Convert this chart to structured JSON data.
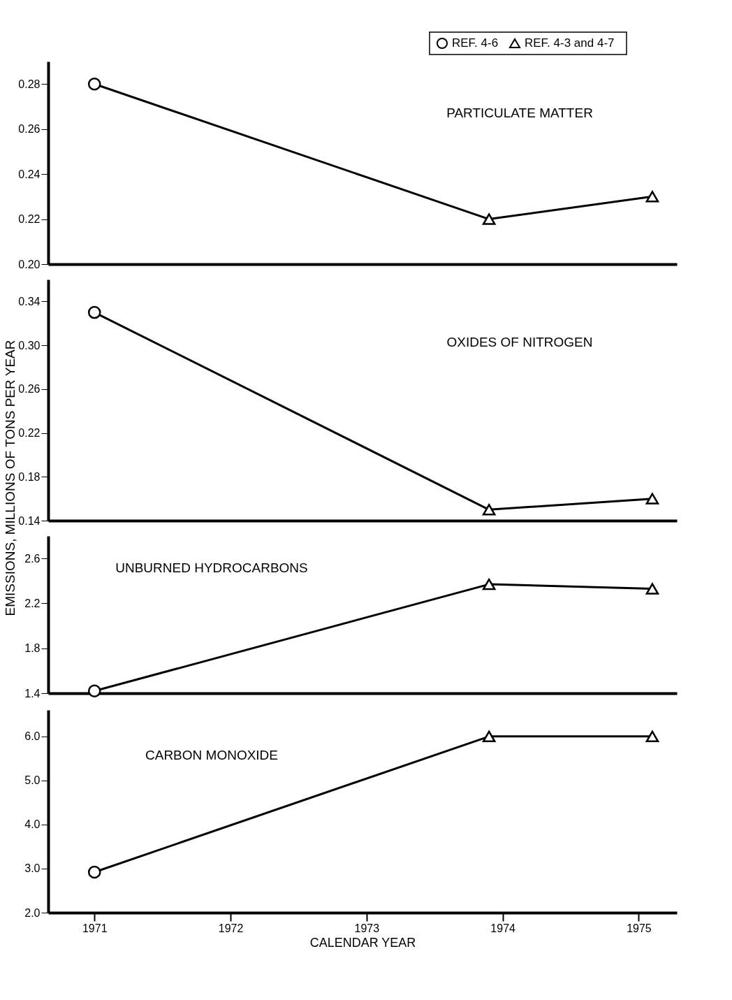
{
  "chart_data": [
    {
      "type": "line",
      "xlim": [
        1970.66,
        1975.28
      ],
      "xticks": [
        1971,
        1972,
        1973,
        1974,
        1975
      ],
      "ylim": [
        0.2,
        0.29
      ],
      "yticks": [
        {
          "value": 0.2,
          "label": "0.20"
        },
        0.22,
        0.24,
        0.26,
        0.28
      ],
      "tick_labels": "y",
      "legend": "top right",
      "annotations": [
        "PARTICULATE MATTER"
      ],
      "series": [
        {
          "marker": "none",
          "color": "#000000",
          "x": [
            1971,
            1973.9,
            1975.1
          ],
          "values": [
            0.28,
            0.22,
            0.23
          ]
        },
        {
          "type": "scatter",
          "name": "REF. 4-6",
          "marker": "circle",
          "color": "#000000",
          "x": [
            1971
          ],
          "values": [
            0.28
          ]
        },
        {
          "type": "scatter",
          "name": "REF. 4-3 and 4-7",
          "marker": "triangle",
          "color": "#000000",
          "x": [
            1973.9,
            1975.1
          ],
          "values": [
            0.22,
            0.23
          ]
        }
      ]
    },
    {
      "type": "line",
      "xlim": [
        1970.66,
        1975.28
      ],
      "xticks": [
        1971,
        1972,
        1973,
        1974,
        1975
      ],
      "ylim": [
        0.14,
        0.36
      ],
      "yticks": [
        0.14,
        0.18,
        0.22,
        0.26,
        {
          "value": 0.3,
          "label": "0.30"
        },
        0.34
      ],
      "tick_labels": "y",
      "ylabel": "EMISSIONS, MILLIONS OF TONS PER YEAR",
      "annotations": [
        "OXIDES OF NITROGEN"
      ],
      "series": [
        {
          "marker": "none",
          "color": "#000000",
          "x": [
            1971,
            1973.9,
            1975.1
          ],
          "values": [
            0.33,
            0.15,
            0.16
          ]
        },
        {
          "type": "scatter",
          "marker": "circle",
          "color": "#000000",
          "x": [
            1971
          ],
          "values": [
            0.33
          ]
        },
        {
          "type": "scatter",
          "marker": "triangle",
          "color": "#000000",
          "x": [
            1973.9,
            1975.1
          ],
          "values": [
            0.15,
            0.16
          ]
        }
      ]
    },
    {
      "type": "line",
      "xlim": [
        1970.66,
        1975.28
      ],
      "xticks": [
        1971,
        1972,
        1973,
        1974,
        1975
      ],
      "ylim": [
        1.4,
        2.8
      ],
      "yticks": [
        1.4,
        1.8,
        2.2,
        2.6
      ],
      "tick_labels": "y",
      "annotations": [
        "UNBURNED HYDROCARBONS"
      ],
      "series": [
        {
          "marker": "none",
          "color": "#000000",
          "x": [
            1971,
            1973.9,
            1975.1
          ],
          "values": [
            1.42,
            2.37,
            2.33
          ]
        },
        {
          "type": "scatter",
          "marker": "circle",
          "color": "#000000",
          "x": [
            1971
          ],
          "values": [
            1.42
          ]
        },
        {
          "type": "scatter",
          "marker": "triangle",
          "color": "#000000",
          "x": [
            1973.9,
            1975.1
          ],
          "values": [
            2.37,
            2.33
          ]
        }
      ]
    },
    {
      "type": "line",
      "xlim": [
        1970.66,
        1975.28
      ],
      "xticks": [
        1971,
        1972,
        1973,
        1974,
        1975
      ],
      "ylim": [
        2.0,
        6.6
      ],
      "yticks": [
        {
          "value": 2,
          "label": "2.0"
        },
        {
          "value": 3,
          "label": "3.0"
        },
        {
          "value": 4,
          "label": "4.0"
        },
        {
          "value": 5,
          "label": "5.0"
        },
        {
          "value": 6,
          "label": "6.0"
        }
      ],
      "xlabel": "CALENDAR YEAR",
      "annotations": [
        "CARBON MONOXIDE"
      ],
      "series": [
        {
          "marker": "none",
          "color": "#000000",
          "x": [
            1971,
            1973.9,
            1975.1
          ],
          "values": [
            2.92,
            6.0,
            6.0
          ]
        },
        {
          "type": "scatter",
          "marker": "circle",
          "color": "#000000",
          "x": [
            1971
          ],
          "values": [
            2.92
          ]
        },
        {
          "type": "scatter",
          "marker": "triangle",
          "color": "#000000",
          "x": [
            1973.9,
            1975.1
          ],
          "values": [
            6.0,
            6.0
          ]
        }
      ]
    }
  ]
}
